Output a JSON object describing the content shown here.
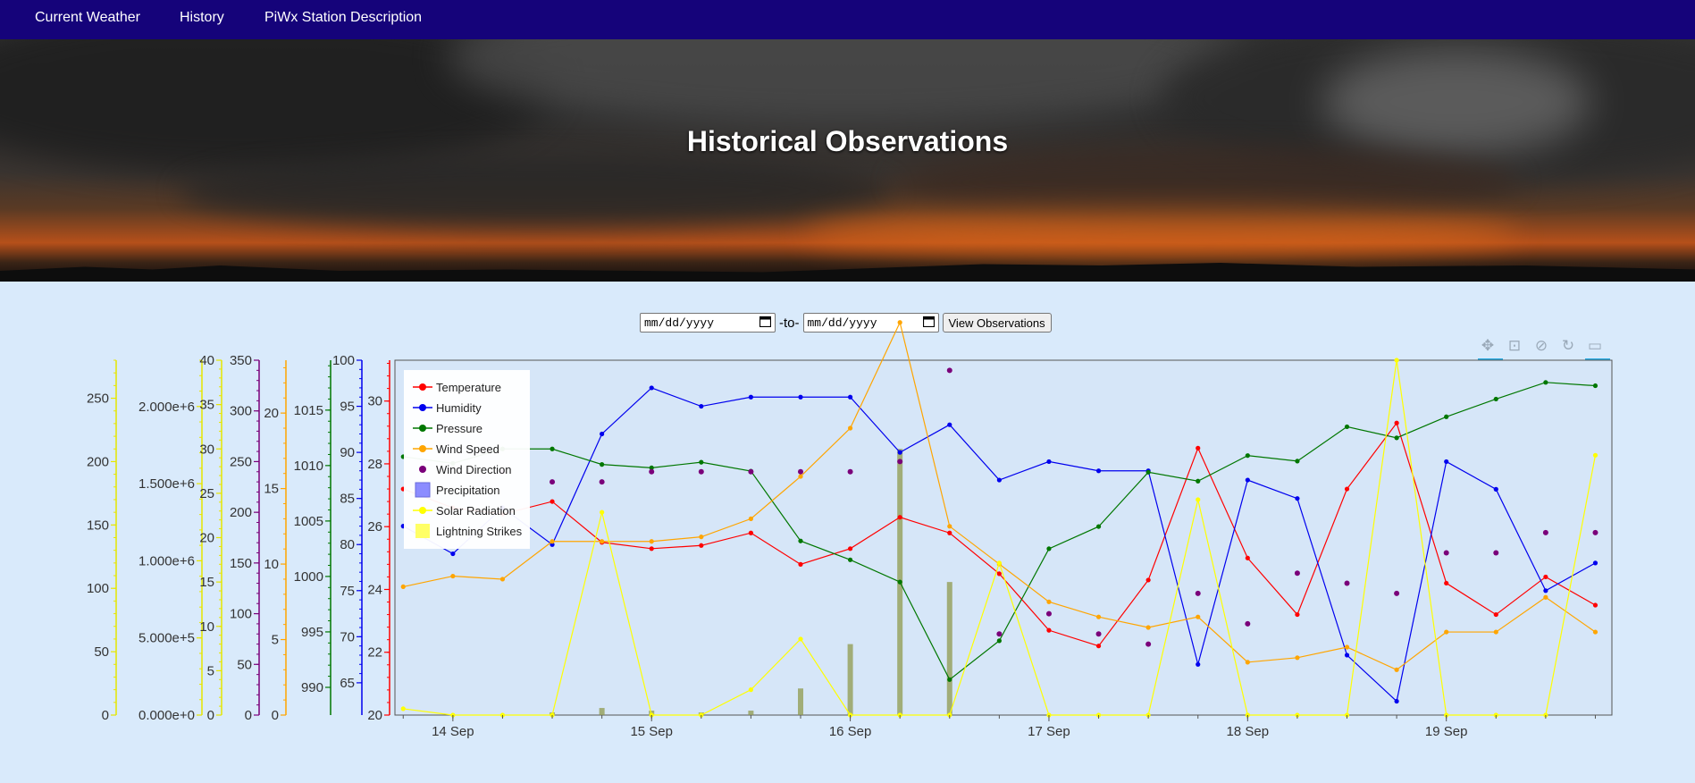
{
  "nav": {
    "items": [
      "Current Weather",
      "History",
      "PiWx Station Description"
    ]
  },
  "hero": {
    "title": "Historical Observations"
  },
  "form": {
    "start_placeholder": "mm/dd/yyyy",
    "separator": "-to-",
    "end_placeholder": "mm/dd/yyyy",
    "submit_label": "View Observations"
  },
  "toolbar": [
    "pan-icon",
    "box-zoom-icon",
    "wheel-zoom-icon",
    "reset-icon",
    "hover-icon"
  ],
  "colors": {
    "nav_bg": "#15037a",
    "page_bg": "#d9eafb",
    "plot_bg": "#d6e6f8"
  },
  "chart_data": {
    "type": "line",
    "x": [
      "13 Sep 18:00",
      "14 Sep 00:00",
      "14 Sep 06:00",
      "14 Sep 12:00",
      "14 Sep 18:00",
      "15 Sep 00:00",
      "15 Sep 06:00",
      "15 Sep 12:00",
      "15 Sep 18:00",
      "16 Sep 00:00",
      "16 Sep 06:00",
      "16 Sep 12:00",
      "16 Sep 18:00",
      "17 Sep 00:00",
      "17 Sep 06:00",
      "17 Sep 12:00",
      "17 Sep 18:00",
      "18 Sep 00:00",
      "18 Sep 06:00",
      "18 Sep 12:00",
      "18 Sep 18:00",
      "19 Sep 00:00",
      "19 Sep 06:00",
      "19 Sep 12:00",
      "19 Sep 18:00"
    ],
    "xticks": [
      "14 Sep",
      "15 Sep",
      "16 Sep",
      "17 Sep",
      "18 Sep",
      "19 Sep"
    ],
    "xlim": [
      "13 Sep 17:00",
      "19 Sep 20:00"
    ],
    "legend_position": "top-left",
    "series": [
      {
        "name": "Temperature",
        "color": "#ff0000",
        "marker": "circle",
        "axis": "temperature",
        "values": [
          27.2,
          26.6,
          26.4,
          26.8,
          25.5,
          25.3,
          25.4,
          25.8,
          24.8,
          25.3,
          26.3,
          25.8,
          24.5,
          22.7,
          22.2,
          24.3,
          28.5,
          25.0,
          23.2,
          27.2,
          29.3,
          24.2,
          23.2,
          24.4,
          23.5
        ]
      },
      {
        "name": "Humidity",
        "color": "#0000ee",
        "marker": "circle",
        "axis": "humidity",
        "values": [
          82,
          79,
          84,
          80,
          92,
          97,
          95,
          96,
          96,
          96,
          90,
          93,
          87,
          89,
          88,
          88,
          67,
          87,
          85,
          68,
          63,
          89,
          86,
          75,
          78
        ]
      },
      {
        "name": "Pressure",
        "color": "#007700",
        "marker": "circle",
        "axis": "pressure",
        "values": [
          1010.8,
          1010.2,
          1011.5,
          1011.5,
          1010.1,
          1009.8,
          1010.3,
          1009.5,
          1003.2,
          1001.5,
          999.5,
          990.7,
          994.2,
          1002.5,
          1004.5,
          1009.4,
          1008.6,
          1010.9,
          1010.4,
          1013.5,
          1012.5,
          1014.4,
          1016.0,
          1017.5,
          1017.2
        ]
      },
      {
        "name": "Wind Speed",
        "color": "#ffa500",
        "marker": "circle",
        "axis": "wind_speed",
        "values": [
          8.5,
          9.2,
          9.0,
          11.5,
          11.5,
          11.5,
          11.8,
          13.0,
          15.8,
          19.0,
          26.0,
          12.5,
          10.0,
          7.5,
          6.5,
          5.8,
          6.5,
          3.5,
          3.8,
          4.5,
          3.0,
          5.5,
          5.5,
          7.8,
          5.5
        ]
      },
      {
        "name": "Wind Direction",
        "color": "#7a007a",
        "marker": "dot",
        "axis": "wind_direction",
        "values": [
          null,
          null,
          240,
          230,
          230,
          240,
          240,
          240,
          240,
          240,
          250,
          340,
          80,
          100,
          80,
          70,
          120,
          90,
          140,
          130,
          120,
          160,
          160,
          180,
          180
        ]
      },
      {
        "name": "Precipitation",
        "color": "#8080ff",
        "marker": "bar",
        "axis": "precipitation",
        "values": [
          0,
          0,
          0,
          0.3,
          0.8,
          0.5,
          0.3,
          0.5,
          3,
          8,
          30,
          15,
          0,
          0,
          0,
          0,
          0,
          0,
          0,
          0,
          0,
          0,
          0,
          0,
          0
        ]
      },
      {
        "name": "Solar Radiation",
        "color": "#ffff00",
        "marker": "circle",
        "axis": "solar_radiation",
        "values": [
          5,
          0,
          0,
          0,
          160,
          0,
          0,
          20,
          60,
          0,
          0,
          0,
          120,
          0,
          0,
          0,
          170,
          0,
          0,
          0,
          280,
          0,
          0,
          0,
          205
        ]
      },
      {
        "name": "Lightning Strikes",
        "color": "#ffff66",
        "marker": "square",
        "axis": "lightning",
        "values": [
          0,
          0,
          0,
          0,
          0,
          0,
          0,
          0,
          0,
          0,
          0,
          0,
          0,
          0,
          0,
          0,
          0,
          0,
          0,
          0,
          0,
          0,
          0,
          0,
          0
        ]
      }
    ],
    "axes": [
      {
        "id": "solar_radiation",
        "range": [
          0,
          280
        ],
        "ticks": [
          "0",
          "50",
          "100",
          "150",
          "200",
          "250"
        ],
        "color": "#e6e600"
      },
      {
        "id": "lightning",
        "range": [
          0,
          2300000
        ],
        "ticks": [
          "0.000e+0",
          "5.000e+5",
          "1.000e+6",
          "1.500e+6",
          "2.000e+6"
        ],
        "color": "#e6e600"
      },
      {
        "id": "precipitation",
        "range": [
          0,
          40
        ],
        "ticks": [
          "0",
          "5",
          "10",
          "15",
          "20",
          "25",
          "30",
          "35",
          "40"
        ],
        "color": "#e6e600"
      },
      {
        "id": "wind_direction",
        "range": [
          0,
          350
        ],
        "ticks": [
          "0",
          "50",
          "100",
          "150",
          "200",
          "250",
          "300",
          "350"
        ],
        "color": "#7a007a"
      },
      {
        "id": "wind_speed",
        "range": [
          0,
          23.5
        ],
        "ticks": [
          "0",
          "5",
          "10",
          "15",
          "20"
        ],
        "color": "#ffa500"
      },
      {
        "id": "pressure",
        "range": [
          987.5,
          1019.5
        ],
        "ticks": [
          "990",
          "995",
          "1000",
          "1005",
          "1010",
          "1015"
        ],
        "color": "#007700"
      },
      {
        "id": "humidity",
        "range": [
          61.5,
          100
        ],
        "ticks": [
          "65",
          "70",
          "75",
          "80",
          "85",
          "90",
          "95",
          "100"
        ],
        "color": "#0000ee"
      },
      {
        "id": "temperature",
        "range": [
          20,
          31.3
        ],
        "ticks": [
          "20",
          "22",
          "24",
          "26",
          "28",
          "30"
        ],
        "color": "#ff0000"
      }
    ]
  }
}
